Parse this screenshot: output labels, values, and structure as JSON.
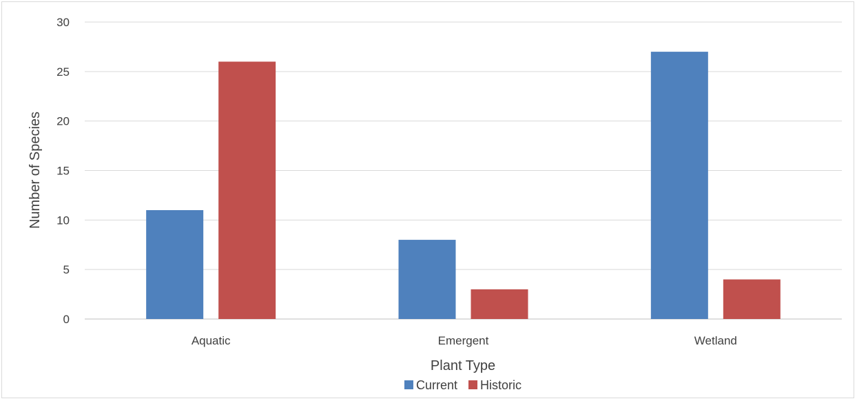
{
  "chart_data": {
    "type": "bar",
    "title": "",
    "xlabel": "Plant Type",
    "ylabel": "Number of Species",
    "categories": [
      "Aquatic",
      "Emergent",
      "Wetland"
    ],
    "series": [
      {
        "name": "Current",
        "values": [
          11,
          8,
          27
        ],
        "color": "#4f81bd"
      },
      {
        "name": "Historic",
        "values": [
          26,
          3,
          4
        ],
        "color": "#c0504d"
      }
    ],
    "ylim": [
      0,
      30
    ],
    "yticks": [
      0,
      5,
      10,
      15,
      20,
      25,
      30
    ],
    "grid": true,
    "legend_position": "bottom"
  }
}
